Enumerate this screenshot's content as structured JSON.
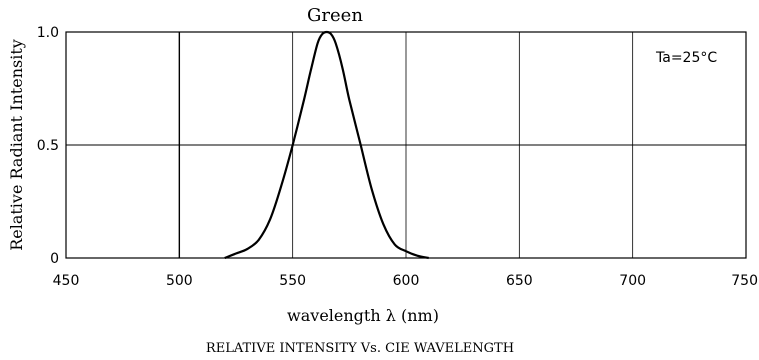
{
  "chart_data": {
    "type": "line",
    "title": "Green",
    "xlabel": "wavelength λ (nm)",
    "ylabel": "Relative Radiant Intensity",
    "caption": "RELATIVE INTENSITY Vs. CIE WAVELENGTH",
    "annotation": "Ta=25°C",
    "xlim": [
      450,
      750
    ],
    "ylim": [
      0,
      1.0
    ],
    "x_ticks": [
      "450",
      "500",
      "550",
      "600",
      "650",
      "700",
      "750"
    ],
    "x_tick_values": [
      450,
      500,
      550,
      600,
      650,
      700,
      750
    ],
    "y_ticks": [
      "0",
      "0.5",
      "1.0"
    ],
    "y_tick_values": [
      0,
      0.5,
      1.0
    ],
    "grid": true,
    "series": [
      {
        "x": [
          520,
          525,
          530,
          535,
          540,
          545,
          550,
          555,
          558,
          561,
          563,
          565,
          567,
          569,
          572,
          575,
          580,
          585,
          590,
          595,
          600,
          605,
          610
        ],
        "y": [
          0.0,
          0.02,
          0.04,
          0.08,
          0.17,
          0.32,
          0.5,
          0.7,
          0.83,
          0.95,
          0.99,
          1.0,
          0.99,
          0.95,
          0.84,
          0.7,
          0.5,
          0.3,
          0.15,
          0.06,
          0.03,
          0.01,
          0.0
        ]
      }
    ]
  }
}
